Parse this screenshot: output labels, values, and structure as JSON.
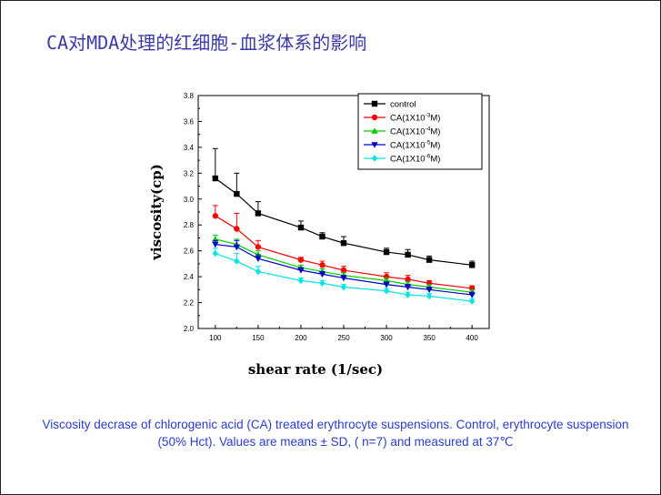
{
  "slide": {
    "title": "CA对MDA处理的红细胞-血浆体系的影响",
    "caption": "Viscosity decrase of chlorogenic acid (CA) treated erythrocyte suspensions. Control, erythrocyte suspension (50% Hct). Values   are means ± SD, ( n=7) and measured at 37℃"
  },
  "chart_data": {
    "type": "line",
    "title": "",
    "xlabel": "shear rate (1/sec)",
    "ylabel": "viscosity(cp)",
    "xlim": [
      80,
      420
    ],
    "ylim": [
      2.0,
      3.8
    ],
    "xticks": [
      100,
      150,
      200,
      250,
      300,
      350,
      400
    ],
    "yticks": [
      2.0,
      2.2,
      2.4,
      2.6,
      2.8,
      3.0,
      3.2,
      3.4,
      3.6,
      3.8
    ],
    "x": [
      100,
      125,
      150,
      200,
      225,
      250,
      300,
      325,
      350,
      400
    ],
    "legend_position": "top-right",
    "series": [
      {
        "name": "control",
        "label_main": "control",
        "label_exp": "",
        "label_tail": "",
        "color": "#000000",
        "marker": "square",
        "values": [
          3.16,
          3.04,
          2.89,
          2.78,
          2.71,
          2.66,
          2.59,
          2.57,
          2.53,
          2.49
        ],
        "errors": [
          0.23,
          0.16,
          0.09,
          0.05,
          0.03,
          0.05,
          0.03,
          0.04,
          0.03,
          0.03
        ]
      },
      {
        "name": "CA(1X10-3M)",
        "label_main": "CA(1X10",
        "label_exp": "-3",
        "label_tail": "M)",
        "color": "#ff0000",
        "marker": "circle",
        "values": [
          2.87,
          2.77,
          2.63,
          2.53,
          2.49,
          2.45,
          2.4,
          2.38,
          2.35,
          2.31
        ],
        "errors": [
          0.08,
          0.12,
          0.05,
          0.02,
          0.03,
          0.03,
          0.03,
          0.03,
          0.02,
          0.02
        ]
      },
      {
        "name": "CA(1X10-4M)",
        "label_main": "CA(1X10",
        "label_exp": "-4",
        "label_tail": "M)",
        "color": "#00cc00",
        "marker": "triangle-up",
        "values": [
          2.69,
          2.65,
          2.57,
          2.47,
          2.44,
          2.41,
          2.37,
          2.34,
          2.32,
          2.28
        ],
        "errors": [
          0.03,
          0.04,
          0.03,
          0.02,
          0.02,
          0.02,
          0.02,
          0.02,
          0.02,
          0.02
        ]
      },
      {
        "name": "CA(1X10-5M)",
        "label_main": "CA(1X10",
        "label_exp": "-5",
        "label_tail": "M)",
        "color": "#0000cc",
        "marker": "triangle-down",
        "values": [
          2.65,
          2.63,
          2.54,
          2.45,
          2.42,
          2.39,
          2.34,
          2.32,
          2.3,
          2.26
        ],
        "errors": [
          0.03,
          0.05,
          0.03,
          0.02,
          0.02,
          0.02,
          0.02,
          0.02,
          0.02,
          0.02
        ]
      },
      {
        "name": "CA(1X10-6M)",
        "label_main": "CA(1X10",
        "label_exp": "-6",
        "label_tail": "M)",
        "color": "#00e5e5",
        "marker": "diamond",
        "values": [
          2.58,
          2.52,
          2.44,
          2.37,
          2.35,
          2.32,
          2.29,
          2.26,
          2.25,
          2.21
        ],
        "errors": [
          0.04,
          0.06,
          0.04,
          0.02,
          0.02,
          0.02,
          0.02,
          0.02,
          0.02,
          0.02
        ]
      }
    ]
  }
}
